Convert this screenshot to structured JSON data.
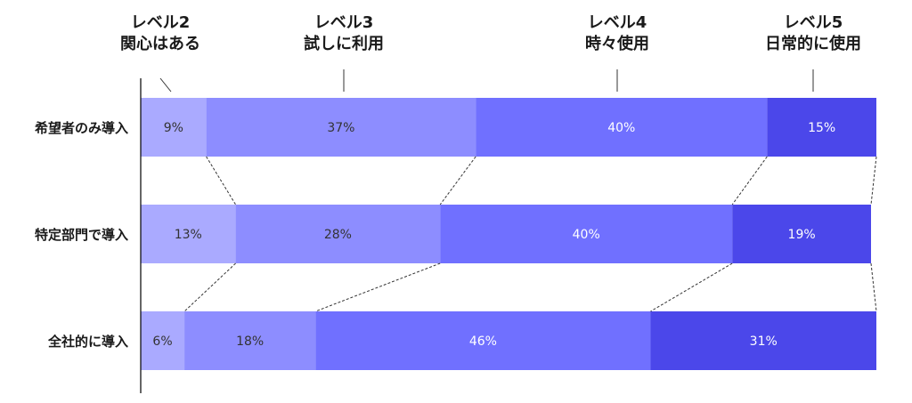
{
  "chart_data": {
    "type": "bar",
    "stacked": true,
    "orientation": "horizontal",
    "categories": [
      "希望者のみ導入",
      "特定部門で導入",
      "全社的に導入"
    ],
    "series": [
      {
        "name": "レベル2\n関心はある",
        "values": [
          9,
          13,
          6
        ],
        "color": "#aaaaff",
        "label_color": "#333333"
      },
      {
        "name": "レベル3\n試しに利用",
        "values": [
          37,
          28,
          18
        ],
        "color": "#8d8dff",
        "label_color": "#333333"
      },
      {
        "name": "レベル4\n時々使用",
        "values": [
          40,
          40,
          46
        ],
        "color": "#7070ff",
        "label_color": "#ffffff"
      },
      {
        "name": "レベル5\n日常的に使用",
        "values": [
          15,
          19,
          31
        ],
        "color": "#4b47ea",
        "label_color": "#ffffff"
      }
    ],
    "data_labels": [
      [
        "9%",
        "37%",
        "40%",
        "15%"
      ],
      [
        "13%",
        "28%",
        "40%",
        "19%"
      ],
      [
        "6%",
        "18%",
        "46%",
        "31%"
      ]
    ],
    "legend_placement": "top",
    "grid": false
  }
}
